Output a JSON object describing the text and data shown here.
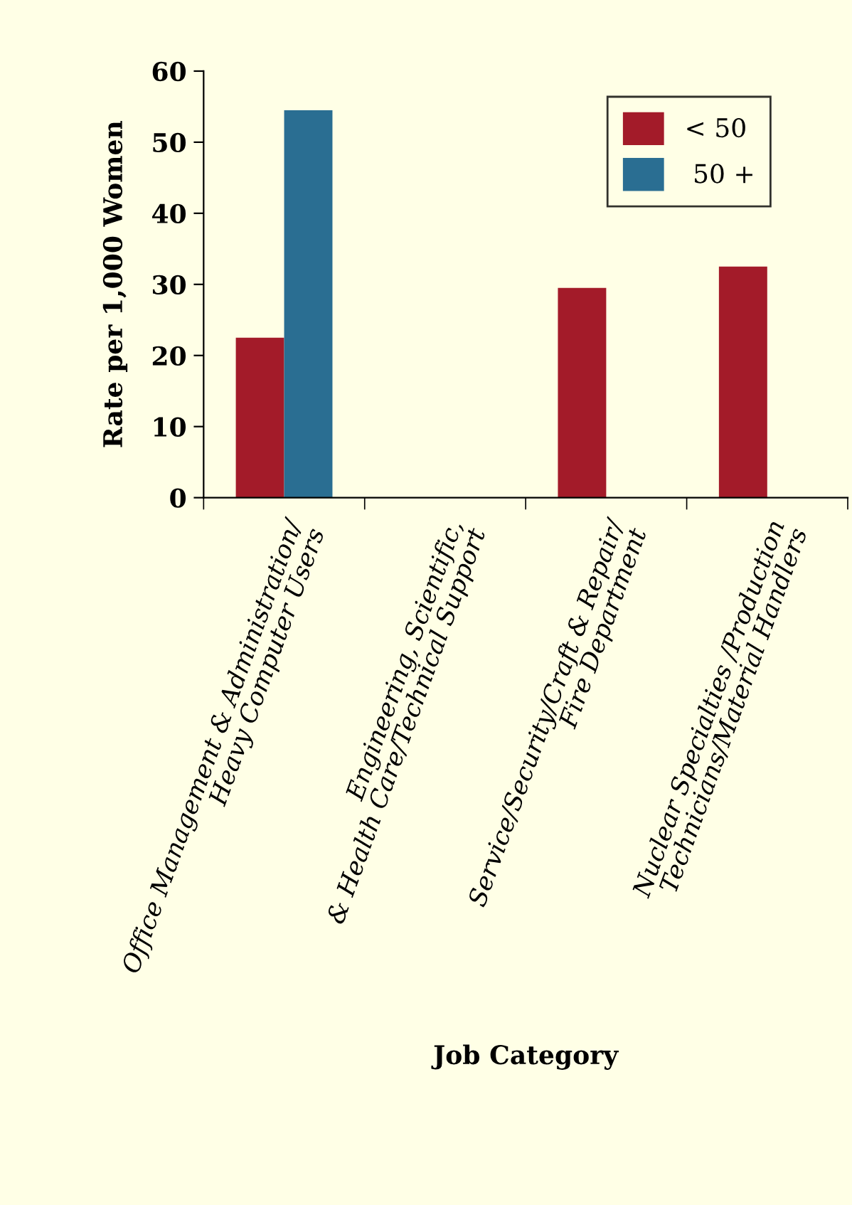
{
  "chart_data": {
    "type": "bar",
    "categories": [
      "Office Management & Administration/\nHeavy Computer Users",
      "Engineering, Scientific,\n& Health Care/Technical Support",
      "Service/Security/Craft & Repair/\nFire Department",
      "Nuclear Specialties /Production\nTechnicians/Material Handlers"
    ],
    "series": [
      {
        "name": "< 50",
        "color": "#a31b29",
        "values": [
          22.5,
          null,
          29.5,
          32.5
        ]
      },
      {
        "name": " 50 +",
        "color": "#2a6e92",
        "values": [
          54.5,
          null,
          null,
          null
        ]
      }
    ],
    "xlabel": "Job Category",
    "ylabel": "Rate per 1,000 Women",
    "ylim": [
      0,
      60
    ],
    "yticks": [
      0,
      10,
      20,
      30,
      40,
      50,
      60
    ],
    "grid": false,
    "legend": "top right"
  }
}
